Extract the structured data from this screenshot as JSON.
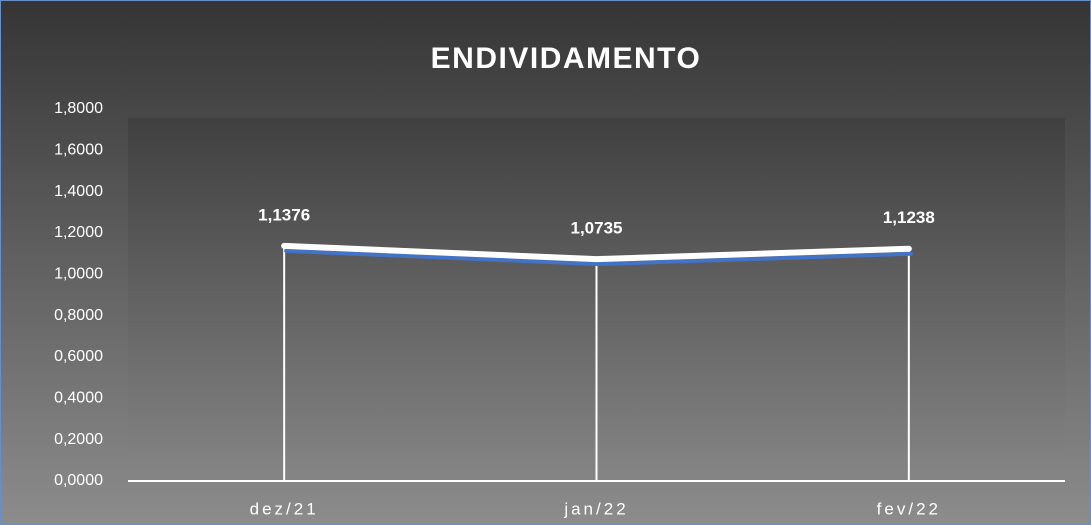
{
  "chart_data": {
    "type": "line",
    "title": "ENDIVIDAMENTO",
    "categories": [
      "dez/21",
      "jan/22",
      "fev/22"
    ],
    "series": [
      {
        "name": "Endividamento",
        "color": "#ffffff",
        "values": [
          1.1376,
          1.0735,
          1.1238
        ],
        "value_labels": [
          "1,1376",
          "1,0735",
          "1,1238"
        ]
      }
    ],
    "ylim": [
      0,
      1.8
    ],
    "yticks": [
      {
        "value": 0,
        "label": "0,0000"
      },
      {
        "value": 0.2,
        "label": "0,2000"
      },
      {
        "value": 0.4,
        "label": "0,4000"
      },
      {
        "value": 0.6,
        "label": "0,6000"
      },
      {
        "value": 0.8,
        "label": "0,8000"
      },
      {
        "value": 1.0,
        "label": "1,0000"
      },
      {
        "value": 1.2,
        "label": "1,2000"
      },
      {
        "value": 1.4,
        "label": "1,4000"
      },
      {
        "value": 1.6,
        "label": "1,6000"
      },
      {
        "value": 1.8,
        "label": "1,8000"
      }
    ],
    "grid": false,
    "drop_lines": true
  }
}
